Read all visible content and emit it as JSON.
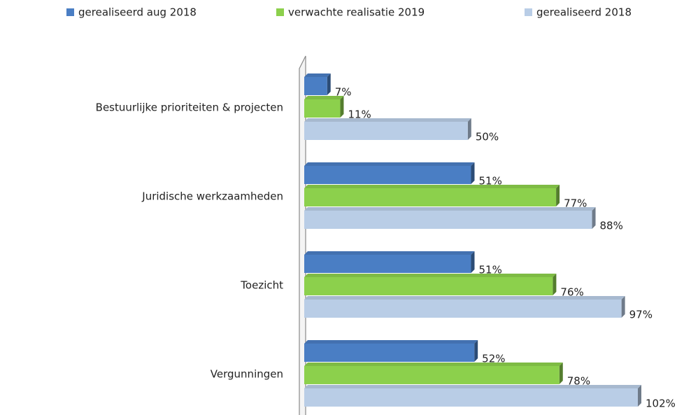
{
  "chart_data": {
    "type": "bar",
    "orientation": "horizontal",
    "categories": [
      "Bestuurlijke prioriteiten & projecten",
      "Juridische werkzaamheden",
      "Toezicht",
      "Vergunningen"
    ],
    "series": [
      {
        "name": "gerealiseerd aug 2018",
        "color": "#4a7ec4",
        "values": [
          7,
          51,
          51,
          52
        ],
        "value_labels": [
          "7%",
          "51%",
          "51%",
          "52%"
        ]
      },
      {
        "name": "verwachte realisatie 2019",
        "color": "#8cd04c",
        "values": [
          11,
          77,
          76,
          78
        ],
        "value_labels": [
          "11%",
          "77%",
          "76%",
          "78%"
        ]
      },
      {
        "name": "gerealiseerd 2018",
        "color": "#b9cde6",
        "values": [
          50,
          88,
          97,
          102
        ],
        "value_labels": [
          "50%",
          "88%",
          "97%",
          "102%"
        ]
      }
    ],
    "legend": "top"
  }
}
